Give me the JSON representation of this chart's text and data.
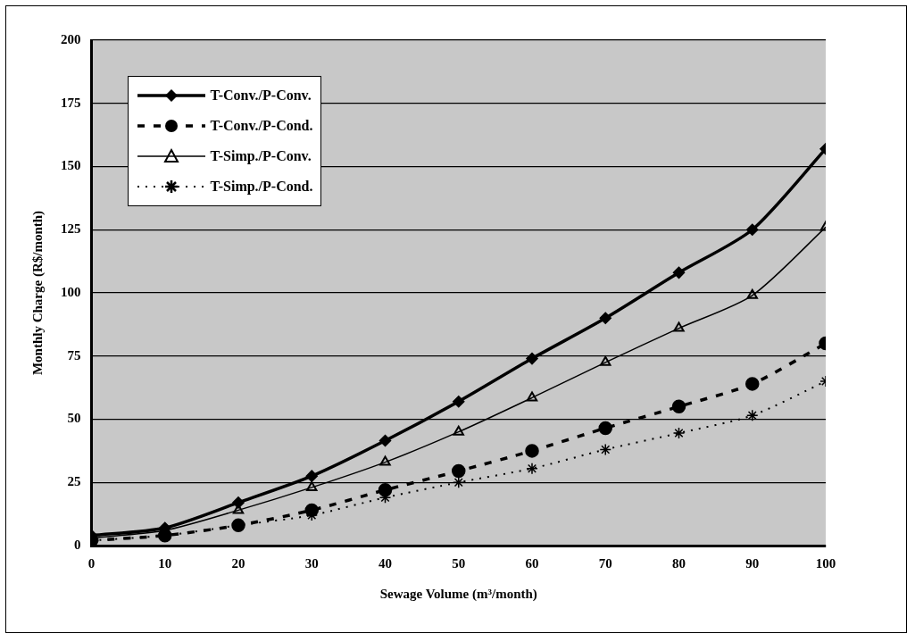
{
  "chart_data": {
    "type": "line",
    "xlabel": "Sewage Volume (m³/month)",
    "ylabel": "Monthly Charge (R$/month)",
    "x": [
      0,
      10,
      20,
      30,
      40,
      50,
      60,
      70,
      80,
      90,
      100
    ],
    "series": [
      {
        "name": "T-Conv./P-Conv.",
        "color": "#000000",
        "marker": "diamond",
        "line_style": "solid",
        "values": [
          4,
          7,
          17,
          27.5,
          41.5,
          57,
          74,
          90,
          108,
          125,
          157
        ]
      },
      {
        "name": "T-Conv./P-Cond.",
        "color": "#000000",
        "marker": "circle",
        "line_style": "dashed",
        "values": [
          2,
          4,
          8,
          14,
          22,
          29.5,
          37.5,
          46.5,
          55,
          64,
          80
        ]
      },
      {
        "name": "T-Simp./P-Conv.",
        "color": "#000000",
        "marker": "triangle",
        "line_style": "solid",
        "values": [
          3,
          6,
          14,
          23,
          33,
          45,
          58.5,
          72.5,
          86,
          99,
          126
        ]
      },
      {
        "name": "T-Simp./P-Cond.",
        "color": "#000000",
        "marker": "cross",
        "line_style": "dotted",
        "values": [
          2,
          4,
          8,
          12,
          19,
          25,
          30.5,
          38,
          44.5,
          51.5,
          65
        ]
      }
    ],
    "xlim": [
      0,
      100
    ],
    "xticks": [
      0,
      10,
      20,
      30,
      40,
      50,
      60,
      70,
      80,
      90,
      100
    ],
    "ylim": [
      0,
      200
    ],
    "yticks": [
      0,
      25,
      50,
      75,
      100,
      125,
      150,
      175,
      200
    ],
    "grid": "y",
    "legend": "top left"
  }
}
